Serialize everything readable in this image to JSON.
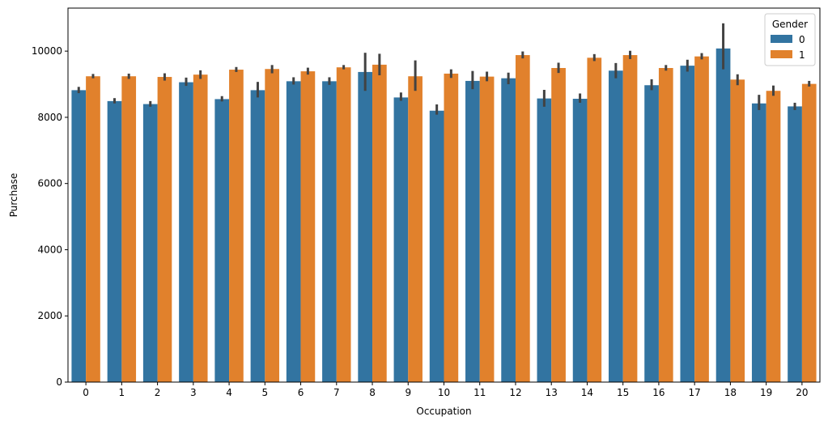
{
  "chart_data": {
    "type": "bar",
    "title": "",
    "xlabel": "Occupation",
    "ylabel": "Purchase",
    "ylim": [
      0,
      11300
    ],
    "yticks": [
      0,
      2000,
      4000,
      6000,
      8000,
      10000
    ],
    "grid": false,
    "legend": {
      "title": "Gender",
      "placement": "top-right"
    },
    "categories": [
      "0",
      "1",
      "2",
      "3",
      "4",
      "5",
      "6",
      "7",
      "8",
      "9",
      "10",
      "11",
      "12",
      "13",
      "14",
      "15",
      "16",
      "17",
      "18",
      "19",
      "20"
    ],
    "series": [
      {
        "name": "0",
        "color": "#3274a1",
        "values": [
          8820,
          8490,
          8400,
          9060,
          8550,
          8820,
          9090,
          9090,
          9370,
          8600,
          8200,
          9100,
          9180,
          8570,
          8560,
          9410,
          8970,
          9560,
          10080,
          8420,
          8330
        ],
        "err_low": [
          8730,
          8420,
          8320,
          8950,
          8480,
          8600,
          8990,
          8980,
          8800,
          8500,
          8080,
          8850,
          9000,
          8320,
          8440,
          9180,
          8820,
          9380,
          9450,
          8220,
          8220
        ],
        "err_high": [
          8920,
          8580,
          8490,
          9200,
          8640,
          9070,
          9210,
          9210,
          9950,
          8750,
          8390,
          9400,
          9350,
          8830,
          8720,
          9640,
          9150,
          9740,
          10840,
          8680,
          8440
        ]
      },
      {
        "name": "1",
        "color": "#e1812c",
        "values": [
          9240,
          9240,
          9220,
          9290,
          9440,
          9460,
          9390,
          9510,
          9590,
          9240,
          9320,
          9230,
          9880,
          9490,
          9800,
          9880,
          9490,
          9840,
          9140,
          8800,
          9010
        ],
        "err_low": [
          9180,
          9160,
          9110,
          9160,
          9370,
          9330,
          9290,
          9450,
          9270,
          8800,
          9190,
          9090,
          9780,
          9340,
          9700,
          9760,
          9410,
          9750,
          8970,
          8650,
          8930
        ],
        "err_high": [
          9310,
          9320,
          9330,
          9420,
          9520,
          9580,
          9500,
          9580,
          9920,
          9720,
          9450,
          9380,
          9990,
          9650,
          9910,
          10010,
          9580,
          9940,
          9300,
          8960,
          9100
        ]
      }
    ]
  }
}
